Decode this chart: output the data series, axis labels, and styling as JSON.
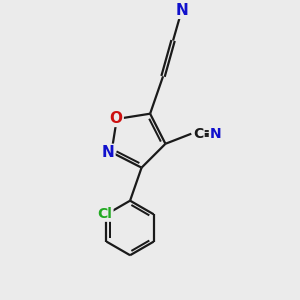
{
  "bg_color": "#ebebeb",
  "bond_color": "#1a1a1a",
  "bond_lw": 1.6,
  "dbo": 0.06,
  "atom_colors": {
    "N": "#1010cc",
    "O": "#cc1010",
    "Cl": "#22aa22",
    "C": "#1a1a1a"
  },
  "xlim": [
    0,
    10
  ],
  "ylim": [
    0,
    10
  ]
}
